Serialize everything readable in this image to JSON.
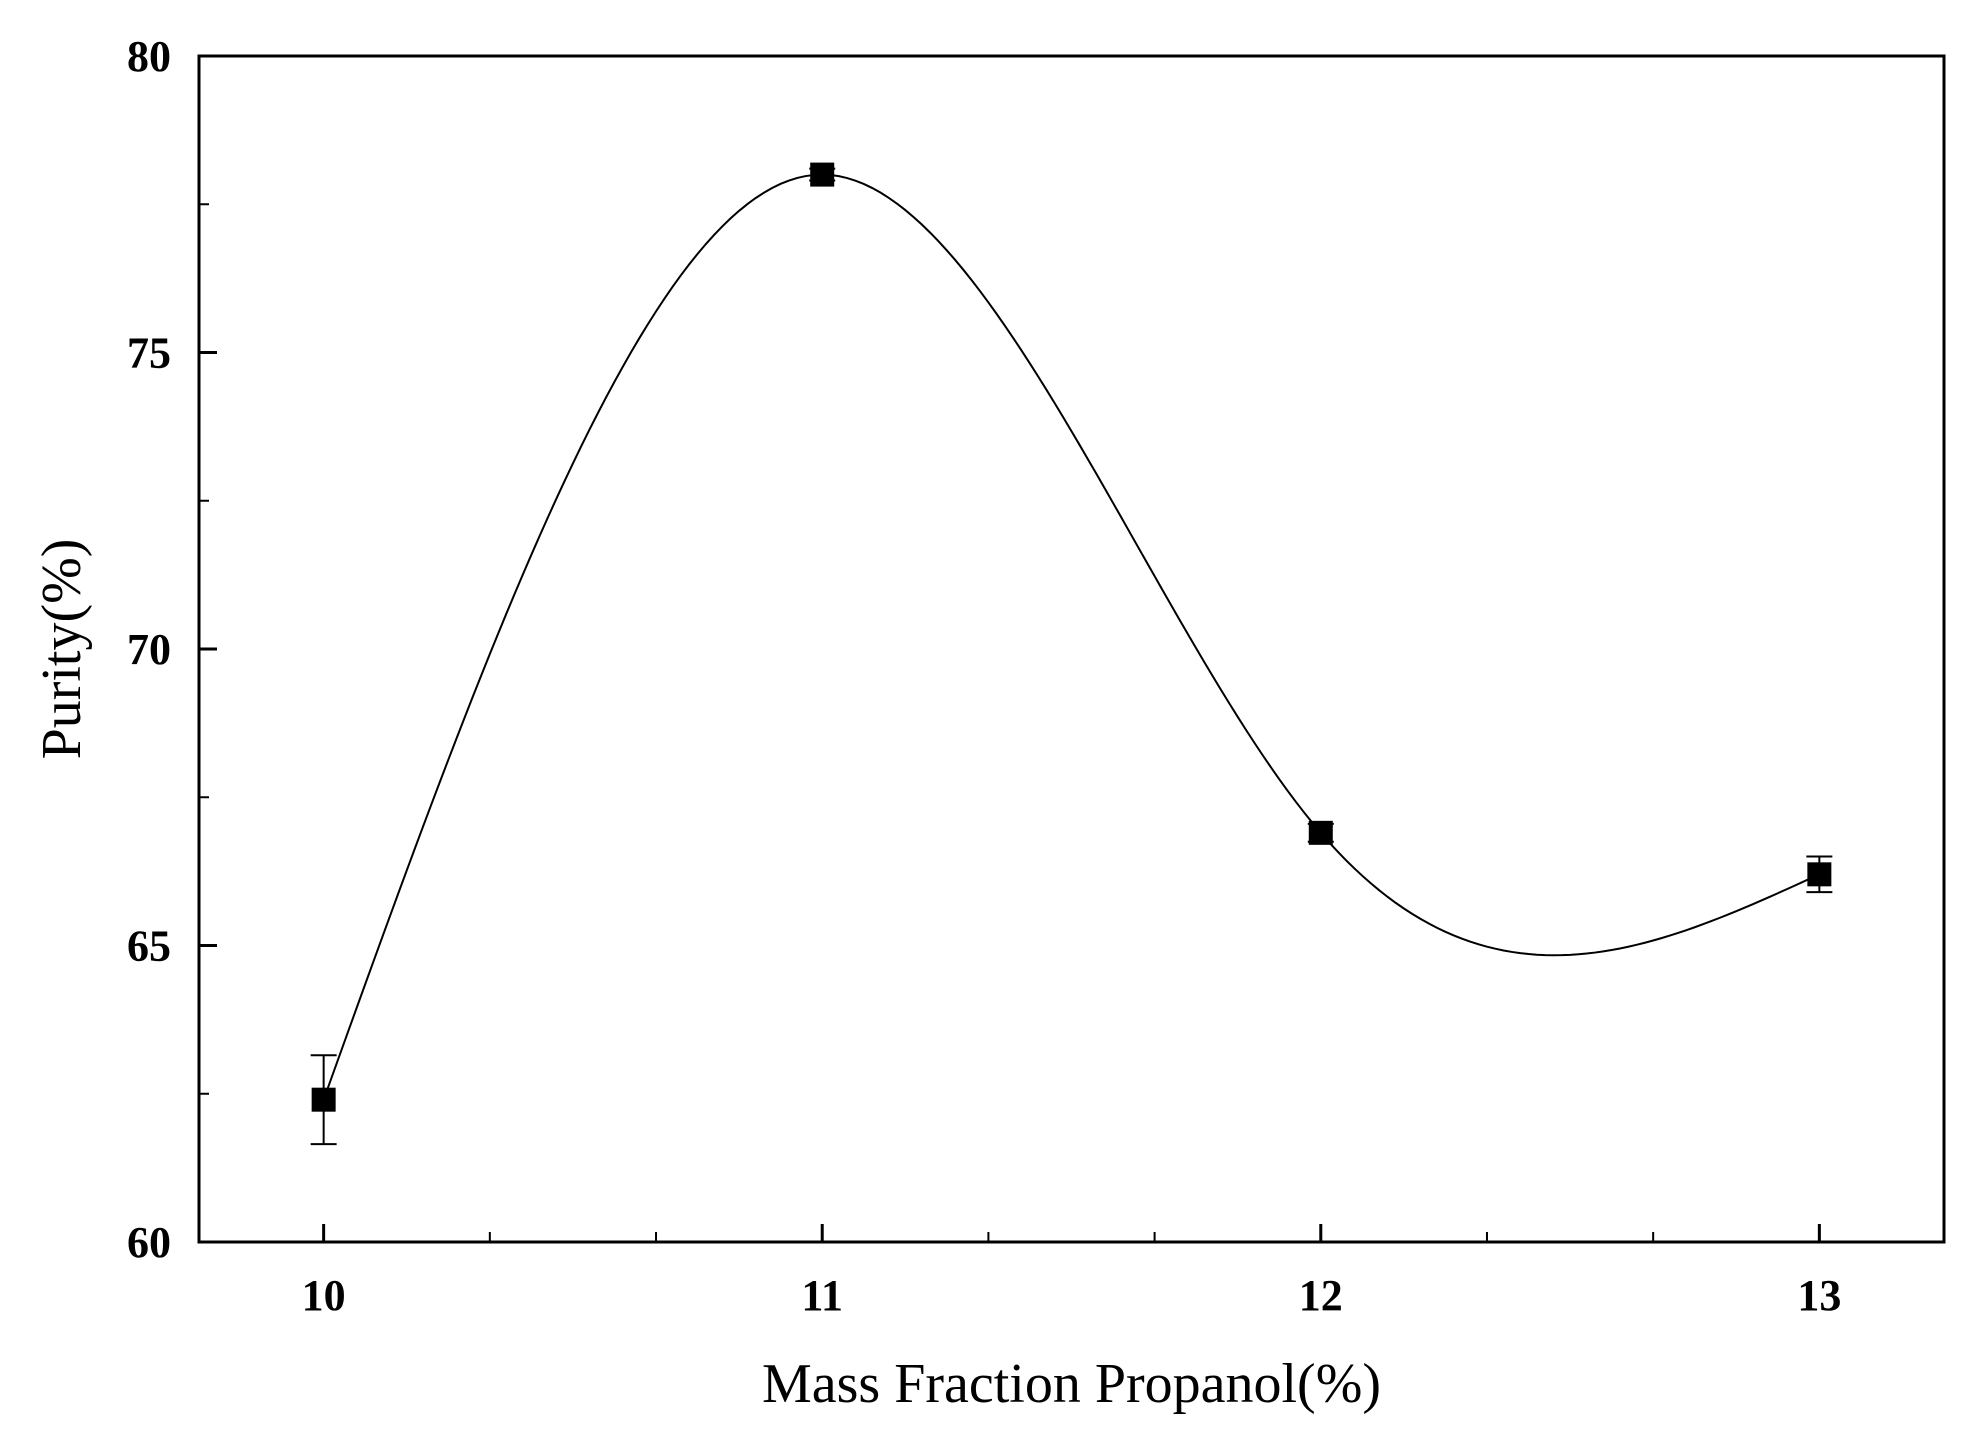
{
  "chart_data": {
    "type": "scatter",
    "title": "",
    "xlabel": "Mass Fraction Propanol(%)",
    "ylabel": "Purity(%)",
    "xlim": [
      9.75,
      13.25
    ],
    "ylim": [
      60,
      80
    ],
    "x_ticks": [
      10,
      11,
      12,
      13
    ],
    "y_ticks": [
      60,
      65,
      70,
      75,
      80
    ],
    "x_tick_labels": [
      "10",
      "11",
      "12",
      "13"
    ],
    "y_tick_labels": [
      "60",
      "65",
      "70",
      "75",
      "80"
    ],
    "grid": false,
    "legend": "none",
    "series": [
      {
        "x": [
          10,
          11,
          12,
          13
        ],
        "y": [
          62.4,
          78.0,
          66.9,
          66.2
        ],
        "error": [
          0.75,
          0.1,
          0.15,
          0.3
        ],
        "marker": "square",
        "fit_line": "smooth-spline",
        "color": "#000000"
      }
    ]
  }
}
